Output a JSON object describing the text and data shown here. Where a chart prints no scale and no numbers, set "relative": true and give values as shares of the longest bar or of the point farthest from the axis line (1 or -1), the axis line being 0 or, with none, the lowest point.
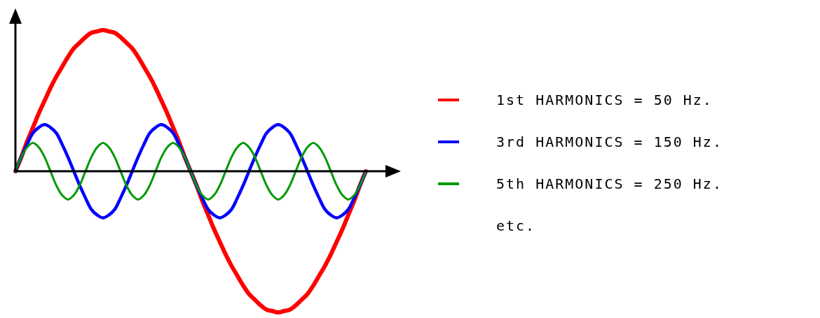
{
  "chart_data": {
    "type": "line",
    "relative": true,
    "legend": "right",
    "categories": [
      null,
      null,
      null,
      null,
      null,
      null,
      null,
      null,
      null,
      null,
      null,
      null,
      null,
      null,
      null,
      null,
      null,
      null,
      null,
      null,
      null,
      null,
      null,
      null,
      null,
      null,
      null,
      null,
      null,
      null,
      null,
      null,
      null,
      null,
      null,
      null,
      null,
      null,
      null,
      null,
      null,
      null,
      null,
      null,
      null,
      null,
      null,
      null,
      null,
      null,
      null,
      null,
      null,
      null,
      null,
      null,
      null,
      null,
      null,
      null,
      null
    ],
    "series": [
      {
        "name": "1st HARMONICS = 50 Hz.",
        "color": "#ff0000",
        "values": [
          0,
          0.1,
          0.21,
          0.31,
          0.41,
          0.5,
          0.59,
          0.67,
          0.74,
          0.81,
          0.87,
          0.91,
          0.95,
          0.98,
          0.99,
          1,
          0.99,
          0.98,
          0.95,
          0.91,
          0.87,
          0.81,
          0.74,
          0.67,
          0.59,
          0.5,
          0.41,
          0.31,
          0.21,
          0.1,
          0,
          -0.1,
          -0.21,
          -0.31,
          -0.41,
          -0.5,
          -0.59,
          -0.67,
          -0.74,
          -0.81,
          -0.87,
          -0.91,
          -0.95,
          -0.98,
          -0.99,
          -1,
          -0.99,
          -0.98,
          -0.95,
          -0.91,
          -0.87,
          -0.81,
          -0.74,
          -0.67,
          -0.59,
          -0.5,
          -0.41,
          -0.31,
          -0.21,
          -0.1,
          0
        ]
      },
      {
        "name": "3rd HARMONICS = 150 Hz.",
        "color": "#0000ff",
        "values": [
          0,
          0.1,
          0.19,
          0.27,
          0.31,
          0.33,
          0.31,
          0.27,
          0.19,
          0.1,
          0,
          -0.1,
          -0.19,
          -0.27,
          -0.31,
          -0.33,
          -0.31,
          -0.27,
          -0.19,
          -0.1,
          0,
          0.1,
          0.19,
          0.27,
          0.31,
          0.33,
          0.31,
          0.27,
          0.19,
          0.1,
          0,
          -0.1,
          -0.19,
          -0.27,
          -0.31,
          -0.33,
          -0.31,
          -0.27,
          -0.19,
          -0.1,
          0,
          0.1,
          0.19,
          0.27,
          0.31,
          0.33,
          0.31,
          0.27,
          0.19,
          0.1,
          0,
          -0.1,
          -0.19,
          -0.27,
          -0.31,
          -0.33,
          -0.31,
          -0.27,
          -0.19,
          -0.1,
          0
        ]
      },
      {
        "name": "5th HARMONICS = 250 Hz.",
        "color": "#009900",
        "values": [
          0,
          0.1,
          0.17,
          0.2,
          0.17,
          0.1,
          0,
          -0.1,
          -0.17,
          -0.2,
          -0.17,
          -0.1,
          0,
          0.1,
          0.17,
          0.2,
          0.17,
          0.1,
          0,
          -0.1,
          -0.17,
          -0.2,
          -0.17,
          -0.1,
          0,
          0.1,
          0.17,
          0.2,
          0.17,
          0.1,
          0,
          -0.1,
          -0.17,
          -0.2,
          -0.17,
          -0.1,
          0,
          0.1,
          0.17,
          0.2,
          0.17,
          0.1,
          0,
          -0.1,
          -0.17,
          -0.2,
          -0.17,
          -0.1,
          0,
          0.1,
          0.17,
          0.2,
          0.17,
          0.1,
          0,
          -0.1,
          -0.17,
          -0.2,
          -0.17,
          -0.1,
          0
        ]
      }
    ],
    "annotations": [
      "etc."
    ]
  }
}
